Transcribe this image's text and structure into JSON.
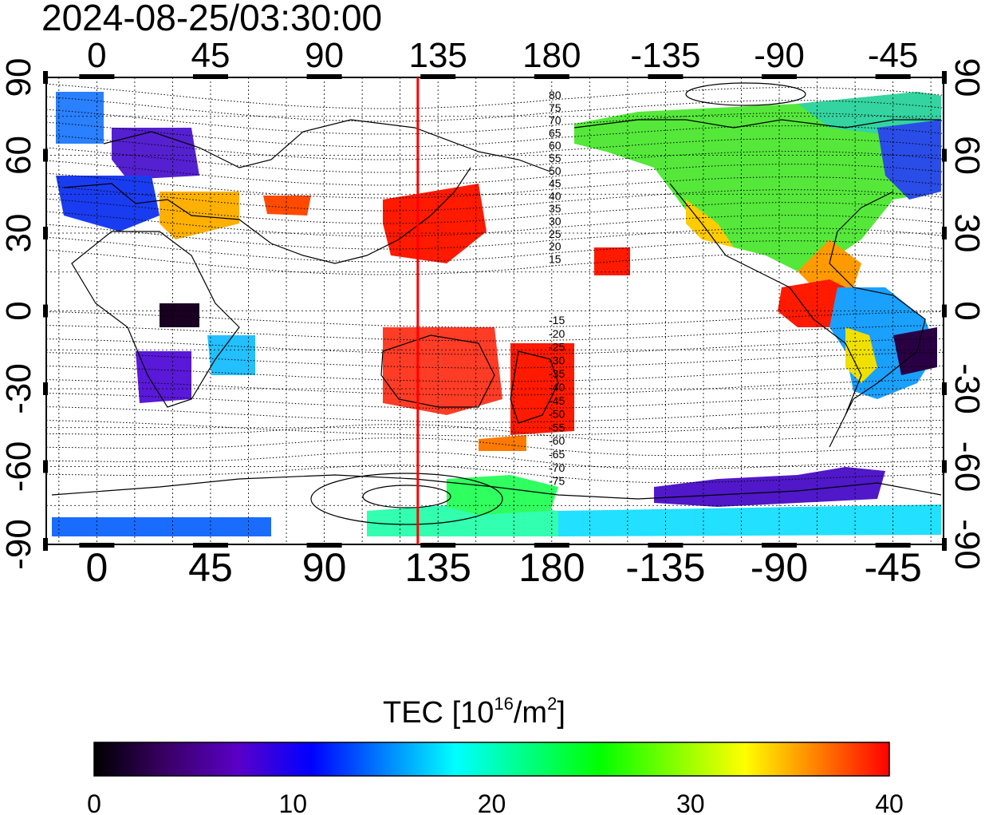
{
  "title": "2024-08-25/03:30:00",
  "lon_ticks": [
    "0",
    "45",
    "90",
    "135",
    "180",
    "-135",
    "-90",
    "-45"
  ],
  "lon_values": [
    0,
    45,
    90,
    135,
    180,
    225,
    270,
    315
  ],
  "lat_ticks": [
    "90",
    "60",
    "30",
    "0",
    "-30",
    "-60",
    "-90"
  ],
  "lat_values": [
    90,
    60,
    30,
    0,
    -30,
    -60,
    -90
  ],
  "lon_range": [
    -20,
    335
  ],
  "lat_range": [
    -90,
    90
  ],
  "grid": true,
  "meridian_marker": {
    "lon": 127,
    "color": "#ff0000"
  },
  "contour_labels_north": [
    "80",
    "75",
    "70",
    "65",
    "60",
    "55",
    "50",
    "45",
    "40",
    "35",
    "30",
    "25",
    "20",
    "15"
  ],
  "contour_labels_south": [
    "-15",
    "-20",
    "-25",
    "-30",
    "-35",
    "-40",
    "-45",
    "-50",
    "-55",
    "-60",
    "-65",
    "-70",
    "-75"
  ],
  "colorbar": {
    "title": "TEC",
    "unit_base": "[10",
    "unit_exp": "16",
    "unit_mid": "/m",
    "unit_exp2": "2",
    "unit_end": "]",
    "ticks": [
      "0",
      "10",
      "20",
      "30",
      "40"
    ],
    "range": [
      0,
      40
    ],
    "colors": [
      "#000000",
      "#3a0066",
      "#5a00c8",
      "#0000ff",
      "#0080ff",
      "#00ffff",
      "#00ff80",
      "#00ff00",
      "#80ff00",
      "#ffff00",
      "#ff8000",
      "#ff0000"
    ]
  }
}
